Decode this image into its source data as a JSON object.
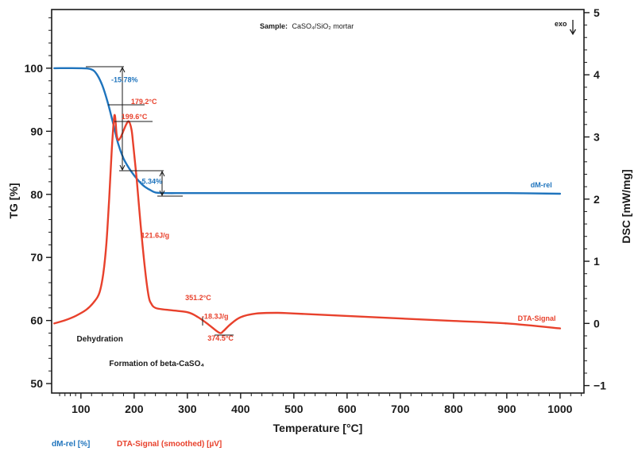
{
  "colors": {
    "tg": "#1f74bd",
    "dsc": "#e8412c",
    "axis": "#1a1a1a"
  },
  "chart_data": {
    "type": "line",
    "xlabel": "Temperature [°C]",
    "ylabel_left": "TG [%]",
    "ylabel_right": "DSC [mW/mg]",
    "xlim": [
      45,
      1045
    ],
    "ylim_left": [
      48.5,
      109.3
    ],
    "ylim_right": [
      -1.12,
      5.05
    ],
    "x_ticks": [
      100,
      200,
      300,
      400,
      500,
      600,
      700,
      800,
      900,
      1000
    ],
    "y_left_ticks": [
      50,
      60,
      70,
      80,
      90,
      100
    ],
    "y_right_ticks": [
      -1,
      0,
      1,
      2,
      3,
      4,
      5
    ],
    "sample_label": "Sample:",
    "sample_value": "CaSO₄/SiO₂ mortar",
    "exo_label": "exo",
    "series": [
      {
        "name": "dM-rel",
        "axis": "left",
        "color": "#1f74bd",
        "x": [
          50,
          100,
          120,
          130,
          140,
          150,
          160,
          170,
          180,
          190,
          200,
          210,
          220,
          230,
          240,
          260,
          300,
          400,
          500,
          600,
          700,
          800,
          900,
          1000
        ],
        "y": [
          100,
          100,
          99.8,
          99.0,
          97.3,
          94.7,
          91.4,
          88.0,
          85.7,
          84.2,
          83.0,
          82.0,
          81.2,
          80.7,
          80.3,
          80.2,
          80.2,
          80.2,
          80.2,
          80.2,
          80.2,
          80.2,
          80.2,
          80.1
        ]
      },
      {
        "name": "DTA-Signal",
        "axis": "right",
        "color": "#e8412c",
        "x": [
          50,
          70,
          90,
          110,
          125,
          135,
          142,
          148,
          153,
          158,
          163,
          167,
          170,
          175,
          180,
          185,
          190,
          195,
          198,
          205,
          212,
          220,
          227,
          232,
          240,
          260,
          300,
          320,
          340,
          360,
          368,
          380,
          400,
          430,
          470,
          500,
          600,
          700,
          800,
          900,
          1000
        ],
        "y": [
          0.0,
          0.05,
          0.12,
          0.22,
          0.35,
          0.5,
          0.8,
          1.3,
          2.0,
          2.8,
          3.35,
          3.05,
          2.95,
          3.0,
          3.1,
          3.2,
          3.25,
          3.12,
          2.9,
          2.3,
          1.6,
          0.9,
          0.45,
          0.32,
          0.25,
          0.22,
          0.18,
          0.1,
          -0.02,
          -0.15,
          -0.12,
          -0.02,
          0.1,
          0.16,
          0.17,
          0.16,
          0.12,
          0.08,
          0.04,
          0.0,
          -0.08
        ]
      }
    ],
    "series_labels": [
      {
        "text": "dM-rel",
        "x": 985,
        "y": 81.1,
        "axis": "left",
        "color": "#1f74bd",
        "anchor": "end"
      },
      {
        "text": "DTA-Signal",
        "x": 992,
        "y": 0.045,
        "axis": "right",
        "color": "#e8412c",
        "anchor": "end"
      }
    ],
    "annotations": [
      {
        "text": "-15.78%",
        "x": 157,
        "y": 97.8,
        "axis": "left",
        "color": "#1f74bd"
      },
      {
        "text": "-5.34%",
        "x": 210,
        "y": 81.7,
        "axis": "left",
        "color": "#1f74bd"
      },
      {
        "text": "179.2°C",
        "x": 194,
        "y": 94.3,
        "axis": "left",
        "color": "#e8412c"
      },
      {
        "text": "199.6°C",
        "x": 176,
        "y": 91.9,
        "axis": "left",
        "color": "#e8412c"
      },
      {
        "text": "121.6J/g",
        "x": 213,
        "y": 73.1,
        "axis": "left",
        "color": "#e8412c"
      },
      {
        "text": "351.2°C",
        "x": 296,
        "y": 63.2,
        "axis": "left",
        "color": "#e8412c"
      },
      {
        "text": "-18.3J/g",
        "x": 327,
        "y": 60.3,
        "axis": "left",
        "color": "#e8412c"
      },
      {
        "text": "374.5°C",
        "x": 338,
        "y": 56.8,
        "axis": "left",
        "color": "#e8412c"
      },
      {
        "text": "Dehydration",
        "x": 92,
        "y": 56.7,
        "axis": "left",
        "color": "#1a1a1a"
      },
      {
        "text": "Formation of beta-CaSO₄",
        "x": 153,
        "y": 52.8,
        "axis": "left",
        "color": "#1a1a1a"
      }
    ],
    "legend": [
      {
        "text": "dM-rel [%]",
        "color": "#1f74bd"
      },
      {
        "text": "DTA-Signal (smoothed) [µV]",
        "color": "#e8412c"
      }
    ],
    "legend_position": "bottom-left"
  }
}
